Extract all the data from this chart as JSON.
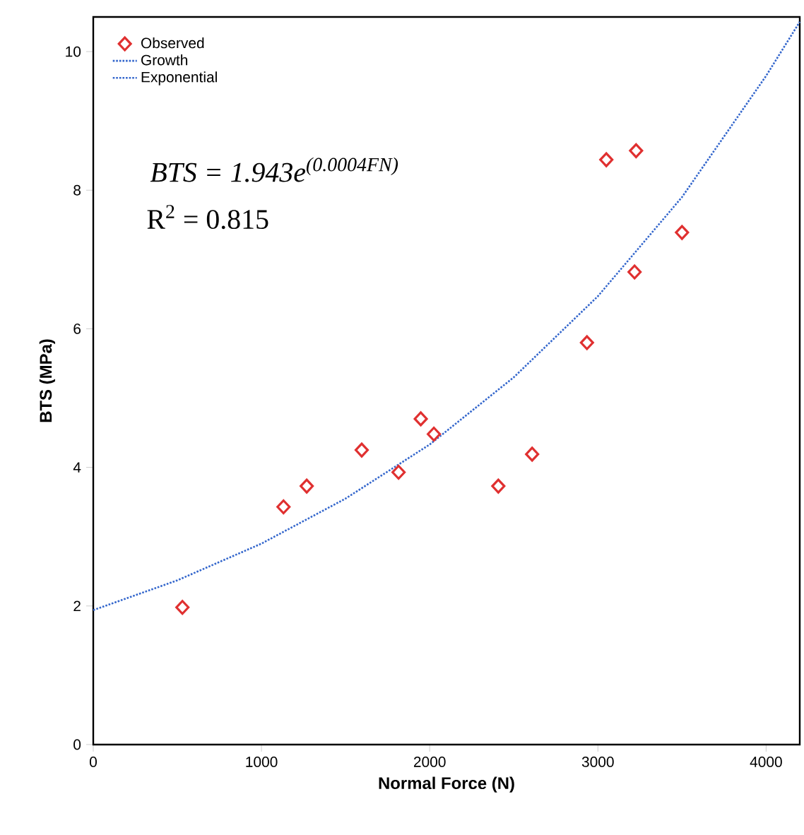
{
  "chart_data": {
    "type": "scatter",
    "xlabel": "Normal Force (N)",
    "ylabel": "BTS (MPa)",
    "xlim": [
      0,
      4200
    ],
    "ylim": [
      0,
      10.5
    ],
    "xticks": [
      0,
      1000,
      2000,
      3000,
      4000
    ],
    "yticks": [
      0,
      2,
      4,
      6,
      8,
      10
    ],
    "legend": "top left",
    "grid": false,
    "series": [
      {
        "name": "Observed",
        "marker": "diamond",
        "color": "#e03030",
        "x": [
          530,
          1131,
          1269,
          1596,
          1815,
          1947,
          2025,
          2408,
          2609,
          2935,
          3050,
          3218,
          3227,
          3500
        ],
        "values": [
          1.98,
          3.43,
          3.73,
          4.25,
          3.93,
          4.7,
          4.48,
          3.73,
          4.19,
          5.8,
          8.44,
          6.82,
          8.57,
          7.39
        ]
      },
      {
        "name": "Growth",
        "type": "line",
        "line_style": "dotted",
        "marker": "none",
        "color": "#3366cc",
        "values": [
          null
        ]
      },
      {
        "name": "Exponential",
        "type": "line",
        "line_style": "dotted",
        "marker": "none",
        "color": "#3366cc",
        "x": [
          0,
          500,
          1000,
          1500,
          2000,
          2500,
          3000,
          3500,
          4000,
          4200
        ],
        "values": [
          1.94,
          2.37,
          2.9,
          3.55,
          4.33,
          5.3,
          6.47,
          7.9,
          9.65,
          10.43
        ]
      }
    ],
    "annotations": [
      "BTS = 1.943e$^{(0.0004FN)}$",
      "R$^{2}$ = 0.815"
    ]
  }
}
